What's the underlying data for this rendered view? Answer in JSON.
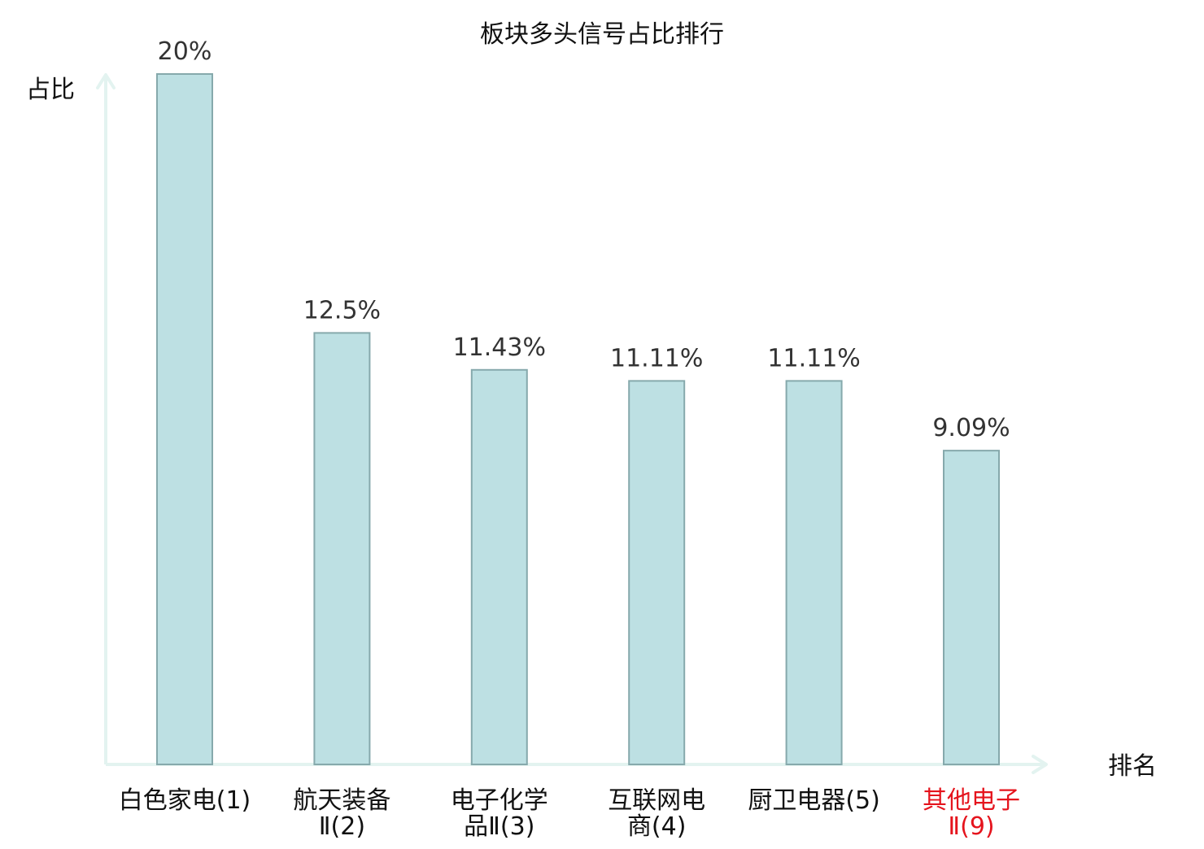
{
  "chart_data": {
    "type": "bar",
    "title": "板块多头信号占比排行",
    "ylabel": "占比",
    "xlabel": "排名",
    "ylim": [
      0,
      20
    ],
    "grid": false,
    "unit": "%",
    "categories": [
      [
        "白色家电(1)"
      ],
      [
        "航天装备",
        "Ⅱ(2)"
      ],
      [
        "电子化学",
        "品Ⅱ(3)"
      ],
      [
        "互联网电",
        "商(4)"
      ],
      [
        "厨卫电器(5)"
      ],
      [
        "其他电子",
        "Ⅱ(9)"
      ]
    ],
    "values": [
      20,
      12.5,
      11.43,
      11.11,
      11.11,
      9.09
    ],
    "value_labels": [
      "20%",
      "12.5%",
      "11.43%",
      "11.11%",
      "11.11%",
      "9.09%"
    ],
    "highlight_index": 5,
    "colors": {
      "bar_fill": "#bde0e3",
      "bar_stroke": "#86a9ac",
      "axis": "#e3f3f0",
      "text": "#333333",
      "highlight_text": "#e5141d"
    }
  }
}
